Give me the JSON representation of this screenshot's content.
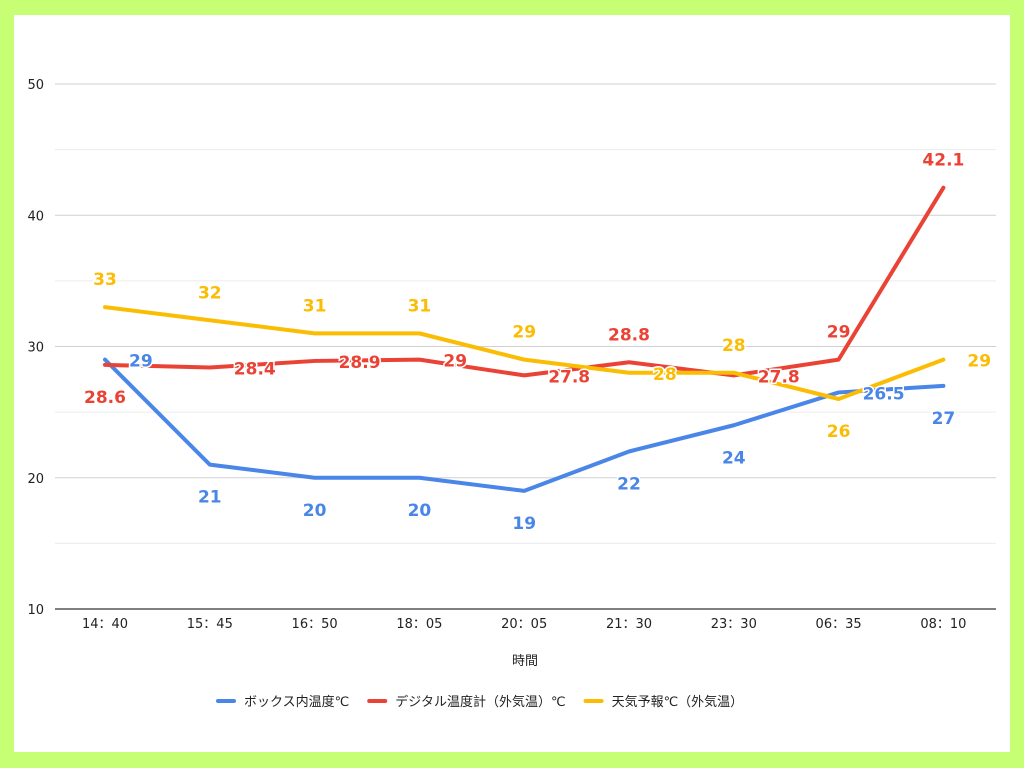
{
  "chart_data": {
    "type": "line",
    "xlabel": "時間",
    "ylabel": "",
    "ylim": [
      10,
      50
    ],
    "yticks": [
      10,
      20,
      30,
      40,
      50
    ],
    "grid": true,
    "legend_position": "bottom",
    "categories": [
      "14：40",
      "15：45",
      "16：50",
      "18：05",
      "20：05",
      "21：30",
      "23：30",
      "06：35",
      "08：10"
    ],
    "series": [
      {
        "name": "ボックス内温度℃",
        "color": "#4a86e8",
        "values": [
          29,
          21,
          20,
          20,
          19,
          22,
          24,
          26.5,
          27
        ],
        "labels": [
          "29",
          "21",
          "20",
          "20",
          "19",
          "22",
          "24",
          "26.5",
          "27"
        ]
      },
      {
        "name": "デジタル温度計（外気温）℃",
        "color": "#ea4335",
        "values": [
          28.6,
          28.4,
          28.9,
          29,
          27.8,
          28.8,
          27.8,
          29,
          42.1
        ],
        "labels": [
          "28.6",
          "28.4",
          "28.9",
          "29",
          "27.8",
          "28.8",
          "27.8",
          "29",
          "42.1"
        ]
      },
      {
        "name": "天気予報℃（外気温）",
        "color": "#fbbc04",
        "values": [
          33,
          32,
          31,
          31,
          29,
          28,
          28,
          26,
          29
        ],
        "labels": [
          "33",
          "32",
          "31",
          "31",
          "29",
          "28",
          "28",
          "26",
          "29"
        ]
      }
    ]
  }
}
